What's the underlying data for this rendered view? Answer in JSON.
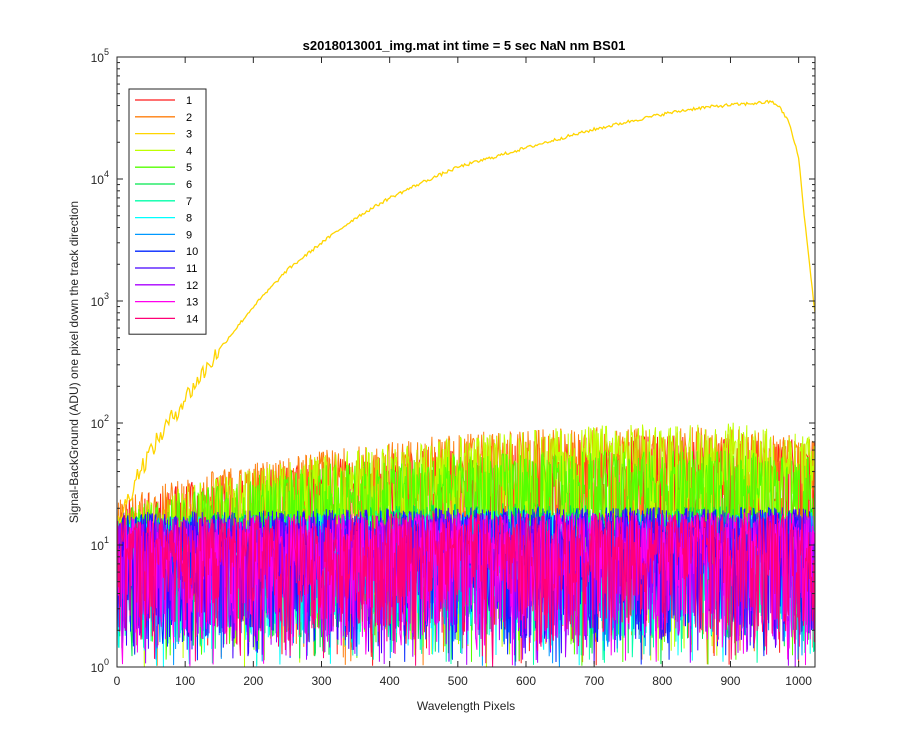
{
  "chart_data": {
    "type": "line",
    "title": "s2018013001_img.mat int time = 5 sec  NaN nm BS01",
    "xlabel": "Wavelength Pixels",
    "ylabel": "Signal-BackGround (ADU) one pixel down the track direction",
    "xlim": [
      0,
      1024
    ],
    "ylim": [
      1,
      100000
    ],
    "yscale": "log",
    "xticks": [
      0,
      100,
      200,
      300,
      400,
      500,
      600,
      700,
      800,
      900,
      1000
    ],
    "xtick_labels": [
      "0",
      "100",
      "200",
      "300",
      "400",
      "500",
      "600",
      "700",
      "800",
      "900",
      "1000"
    ],
    "yticks": [
      1,
      10,
      100,
      1000,
      10000,
      100000
    ],
    "ytick_labels": [
      {
        "base": "10",
        "exp": "0"
      },
      {
        "base": "10",
        "exp": "1"
      },
      {
        "base": "10",
        "exp": "2"
      },
      {
        "base": "10",
        "exp": "3"
      },
      {
        "base": "10",
        "exp": "4"
      },
      {
        "base": "10",
        "exp": "5"
      }
    ],
    "legend_position": "top-left",
    "grid": false,
    "series": [
      {
        "name": "1",
        "color": "#ff1a1a",
        "noise_level": [
          [
            0,
            12
          ],
          [
            300,
            28
          ],
          [
            500,
            35
          ],
          [
            700,
            42
          ],
          [
            900,
            45
          ],
          [
            1024,
            38
          ]
        ]
      },
      {
        "name": "2",
        "color": "#ff7f0e",
        "noise_level": [
          [
            0,
            13
          ],
          [
            300,
            32
          ],
          [
            500,
            45
          ],
          [
            700,
            50
          ],
          [
            900,
            50
          ],
          [
            1024,
            40
          ]
        ]
      },
      {
        "name": "3",
        "color": "#ffd500",
        "x": [
          0,
          10,
          20,
          30,
          50,
          75,
          100,
          150,
          200,
          250,
          300,
          350,
          400,
          450,
          500,
          550,
          600,
          650,
          700,
          750,
          800,
          850,
          900,
          930,
          950,
          960,
          970,
          985,
          1000,
          1010,
          1024
        ],
        "values": [
          15,
          20,
          27,
          38,
          60,
          100,
          160,
          400,
          900,
          1800,
          3000,
          4800,
          7000,
          9500,
          12500,
          15000,
          18000,
          21500,
          25500,
          29500,
          34000,
          38000,
          40500,
          41500,
          42500,
          43000,
          40000,
          30000,
          15000,
          4000,
          800
        ]
      },
      {
        "name": "4",
        "color": "#bfff00",
        "noise_level": [
          [
            0,
            10
          ],
          [
            300,
            30
          ],
          [
            500,
            42
          ],
          [
            700,
            52
          ],
          [
            900,
            55
          ],
          [
            1024,
            42
          ]
        ]
      },
      {
        "name": "5",
        "color": "#55ff00",
        "noise_level": [
          [
            0,
            10
          ],
          [
            300,
            25
          ],
          [
            500,
            30
          ],
          [
            700,
            32
          ],
          [
            900,
            32
          ],
          [
            1024,
            28
          ]
        ]
      },
      {
        "name": "6",
        "color": "#00e64d",
        "noise_level": [
          [
            0,
            9
          ],
          [
            500,
            12
          ],
          [
            1024,
            11
          ]
        ]
      },
      {
        "name": "7",
        "color": "#00ffaa",
        "noise_level": [
          [
            0,
            9
          ],
          [
            500,
            11
          ],
          [
            1024,
            10
          ]
        ]
      },
      {
        "name": "8",
        "color": "#00ffff",
        "noise_level": [
          [
            0,
            9
          ],
          [
            500,
            10
          ],
          [
            1024,
            10
          ]
        ]
      },
      {
        "name": "9",
        "color": "#0099ff",
        "noise_level": [
          [
            0,
            9
          ],
          [
            500,
            10
          ],
          [
            1024,
            10
          ]
        ]
      },
      {
        "name": "10",
        "color": "#0026ff",
        "noise_level": [
          [
            0,
            10
          ],
          [
            500,
            11
          ],
          [
            1024,
            11
          ]
        ]
      },
      {
        "name": "11",
        "color": "#4400ff",
        "noise_level": [
          [
            0,
            10
          ],
          [
            500,
            11
          ],
          [
            1024,
            11
          ]
        ]
      },
      {
        "name": "12",
        "color": "#aa00ff",
        "noise_level": [
          [
            0,
            9
          ],
          [
            500,
            10
          ],
          [
            1024,
            10
          ]
        ]
      },
      {
        "name": "13",
        "color": "#ff00ee",
        "noise_level": [
          [
            0,
            9
          ],
          [
            500,
            10
          ],
          [
            1024,
            10
          ]
        ]
      },
      {
        "name": "14",
        "color": "#ff0077",
        "noise_level": [
          [
            0,
            9
          ],
          [
            500,
            10
          ],
          [
            1024,
            10
          ]
        ]
      }
    ]
  }
}
